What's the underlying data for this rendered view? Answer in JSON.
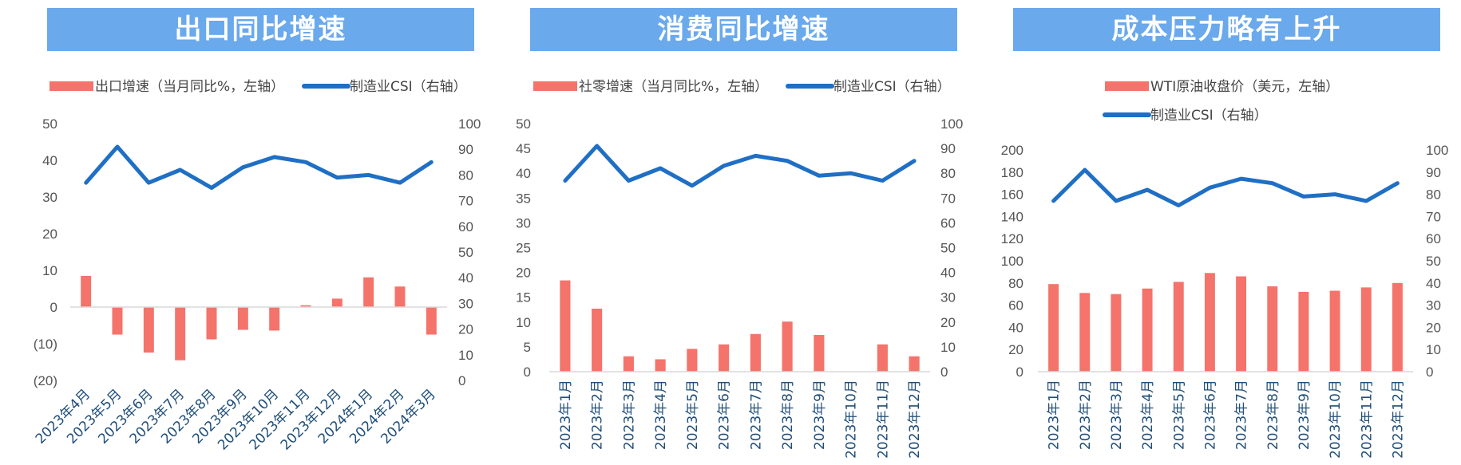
{
  "chart_data": [
    {
      "type": "bar",
      "title": "出口同比增速",
      "categories": [
        "2023年4月",
        "2023年5月",
        "2023年6月",
        "2023年7月",
        "2023年8月",
        "2023年9月",
        "2023年10月",
        "2023年11月",
        "2023年12月",
        "2024年1月",
        "2024年2月",
        "2024年3月"
      ],
      "series": [
        {
          "name": "出口增速（当月同比%，左轴）",
          "axis": "left",
          "type": "bar",
          "color": "#f4736b",
          "values": [
            8.5,
            -7.5,
            -12.4,
            -14.5,
            -8.8,
            -6.2,
            -6.4,
            0.5,
            2.3,
            8.1,
            5.6,
            -7.5
          ]
        },
        {
          "name": "制造业CSI（右轴）",
          "axis": "right",
          "type": "line",
          "color": "#1f6fc5",
          "values": [
            77,
            91,
            77,
            82,
            75,
            83,
            87,
            85,
            79,
            80,
            77,
            85
          ]
        }
      ],
      "yleft": {
        "ticks": [
          "50",
          "40",
          "30",
          "20",
          "10",
          "0",
          "(10)",
          "(20)"
        ],
        "values": [
          50,
          40,
          30,
          20,
          10,
          0,
          -10,
          -20
        ],
        "negative_color": "#c00000"
      },
      "yright": {
        "ticks": [
          "100",
          "90",
          "80",
          "70",
          "60",
          "50",
          "40",
          "30",
          "20",
          "10",
          "0"
        ],
        "values": [
          100,
          90,
          80,
          70,
          60,
          50,
          40,
          30,
          20,
          10,
          0
        ]
      },
      "ylim_left": [
        -20,
        50
      ],
      "ylim_right": [
        0,
        100
      ],
      "legend": "top"
    },
    {
      "type": "bar",
      "title": "消费同比增速",
      "categories": [
        "2023年1月",
        "2023年2月",
        "2023年3月",
        "2023年4月",
        "2023年5月",
        "2023年6月",
        "2023年7月",
        "2023年8月",
        "2023年9月",
        "2023年10月",
        "2023年11月",
        "2023年12月"
      ],
      "series": [
        {
          "name": "社零增速（当月同比%，左轴）",
          "axis": "left",
          "type": "bar",
          "color": "#f4736b",
          "values": [
            18.4,
            12.7,
            3.1,
            2.5,
            4.6,
            5.5,
            7.6,
            10.1,
            7.4,
            0,
            5.5,
            3.1
          ]
        },
        {
          "name": "制造业CSI（右轴）",
          "axis": "right",
          "type": "line",
          "color": "#1f6fc5",
          "values": [
            77,
            91,
            77,
            82,
            75,
            83,
            87,
            85,
            79,
            80,
            77,
            85
          ]
        }
      ],
      "yleft": {
        "ticks": [
          "50",
          "45",
          "40",
          "35",
          "30",
          "25",
          "20",
          "15",
          "10",
          "5",
          "0"
        ],
        "values": [
          50,
          45,
          40,
          35,
          30,
          25,
          20,
          15,
          10,
          5,
          0
        ]
      },
      "yright": {
        "ticks": [
          "100",
          "90",
          "80",
          "70",
          "60",
          "50",
          "40",
          "30",
          "20",
          "10",
          "0"
        ],
        "values": [
          100,
          90,
          80,
          70,
          60,
          50,
          40,
          30,
          20,
          10,
          0
        ]
      },
      "ylim_left": [
        0,
        50
      ],
      "ylim_right": [
        0,
        100
      ],
      "legend": "top"
    },
    {
      "type": "bar",
      "title": "成本压力略有上升",
      "categories": [
        "2023年1月",
        "2023年2月",
        "2023年3月",
        "2023年4月",
        "2023年5月",
        "2023年6月",
        "2023年7月",
        "2023年8月",
        "2023年9月",
        "2023年10月",
        "2023年11月",
        "2023年12月"
      ],
      "series": [
        {
          "name": "WTI原油收盘价（美元，左轴）",
          "axis": "left",
          "type": "bar",
          "color": "#f4736b",
          "values": [
            79,
            71,
            70,
            75,
            81,
            89,
            86,
            77,
            72,
            73,
            76,
            80
          ]
        },
        {
          "name": "制造业CSI（右轴）",
          "axis": "right",
          "type": "line",
          "color": "#1f6fc5",
          "values": [
            77,
            91,
            77,
            82,
            75,
            83,
            87,
            85,
            79,
            80,
            77,
            85
          ]
        }
      ],
      "yleft": {
        "ticks": [
          "200",
          "180",
          "160",
          "140",
          "120",
          "100",
          "80",
          "60",
          "40",
          "20",
          "0"
        ],
        "values": [
          200,
          180,
          160,
          140,
          120,
          100,
          80,
          60,
          40,
          20,
          0
        ]
      },
      "yright": {
        "ticks": [
          "100",
          "90",
          "80",
          "70",
          "60",
          "50",
          "40",
          "30",
          "20",
          "10",
          "0"
        ],
        "values": [
          100,
          90,
          80,
          70,
          60,
          50,
          40,
          30,
          20,
          10,
          0
        ]
      },
      "ylim_left": [
        0,
        200
      ],
      "ylim_right": [
        0,
        100
      ],
      "legend": "top"
    }
  ]
}
